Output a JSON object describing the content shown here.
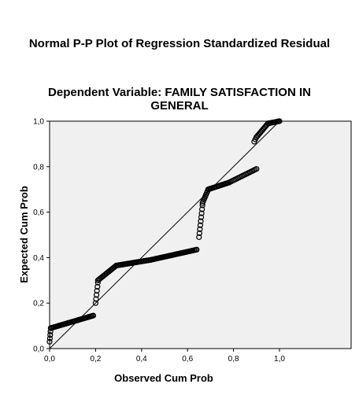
{
  "chart_data": {
    "type": "scatter",
    "title": "Normal P-P Plot of Regression Standardized Residual",
    "subtitle": "Dependent Variable: FAMILY SATISFACTION IN GENERAL",
    "xlabel": "Observed Cum Prob",
    "ylabel": "Expected Cum Prob",
    "xlim": [
      0,
      1
    ],
    "ylim": [
      0,
      1
    ],
    "x_ticks": [
      "0,0",
      "0,2",
      "0,4",
      "0,6",
      "0,8",
      "1,0"
    ],
    "y_ticks": [
      "0,0",
      "0,2",
      "0,4",
      "0,6",
      "0,8",
      "1,0"
    ],
    "grid": false,
    "background": "#f0f0f0",
    "marker": "open-circle",
    "reference_line": {
      "from": [
        0,
        0
      ],
      "to": [
        1,
        1
      ]
    },
    "segments": [
      {
        "x": [
          0.0,
          0.005
        ],
        "y": [
          0.03,
          0.09
        ],
        "n": 5
      },
      {
        "x": [
          0.005,
          0.19
        ],
        "y": [
          0.09,
          0.145
        ],
        "n": 42
      },
      {
        "x": [
          0.2,
          0.21
        ],
        "y": [
          0.2,
          0.29
        ],
        "n": 6
      },
      {
        "x": [
          0.21,
          0.29
        ],
        "y": [
          0.3,
          0.365
        ],
        "n": 18
      },
      {
        "x": [
          0.29,
          0.44
        ],
        "y": [
          0.365,
          0.39
        ],
        "n": 30
      },
      {
        "x": [
          0.44,
          0.64
        ],
        "y": [
          0.39,
          0.435
        ],
        "n": 38
      },
      {
        "x": [
          0.65,
          0.665
        ],
        "y": [
          0.49,
          0.63
        ],
        "n": 9
      },
      {
        "x": [
          0.665,
          0.69
        ],
        "y": [
          0.64,
          0.7
        ],
        "n": 9
      },
      {
        "x": [
          0.69,
          0.78
        ],
        "y": [
          0.7,
          0.73
        ],
        "n": 20
      },
      {
        "x": [
          0.78,
          0.9
        ],
        "y": [
          0.73,
          0.79
        ],
        "n": 22
      },
      {
        "x": [
          0.89,
          0.9
        ],
        "y": [
          0.91,
          0.93
        ],
        "n": 3
      },
      {
        "x": [
          0.9,
          0.95
        ],
        "y": [
          0.93,
          0.99
        ],
        "n": 12
      },
      {
        "x": [
          0.95,
          1.0
        ],
        "y": [
          0.99,
          1.0
        ],
        "n": 12
      }
    ]
  }
}
